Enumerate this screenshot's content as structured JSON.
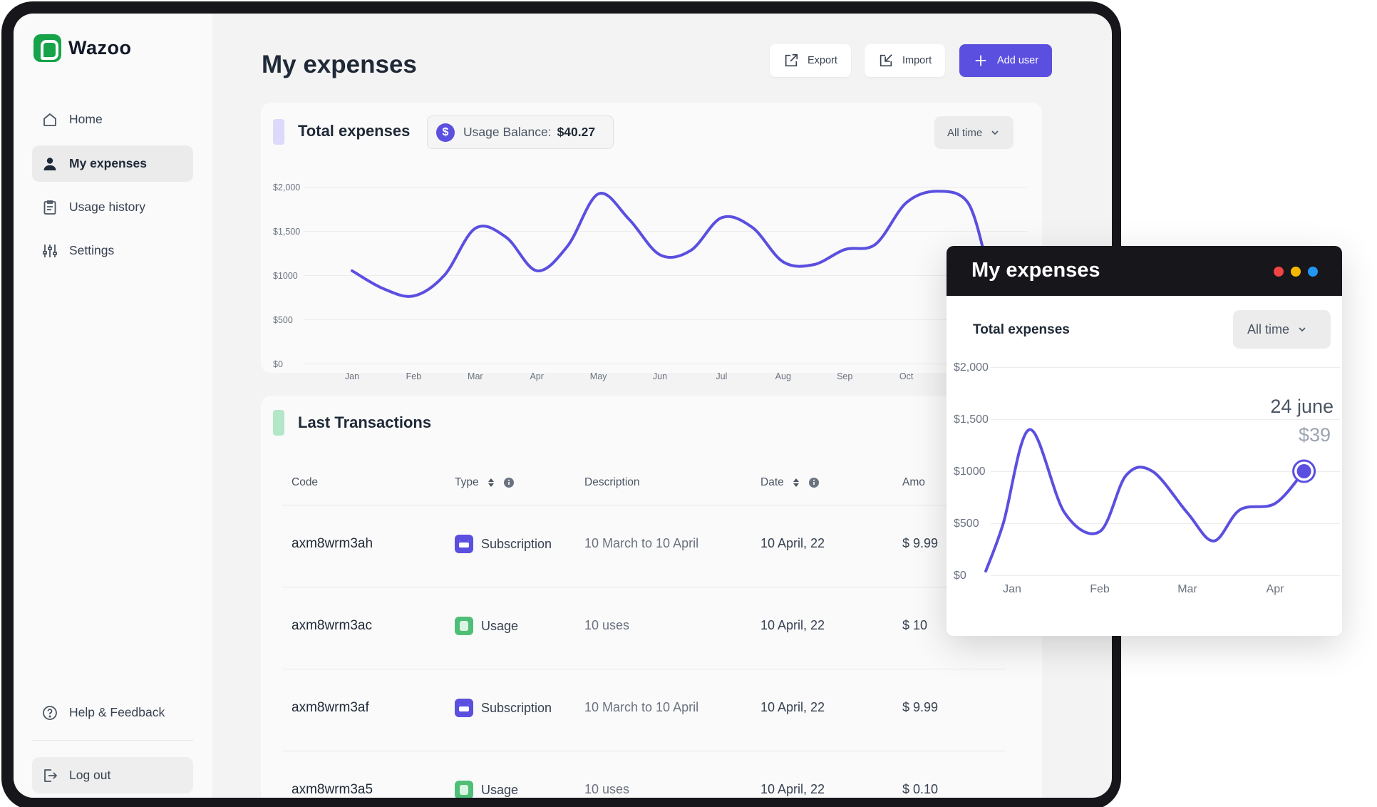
{
  "app": {
    "brand": "Wazoo"
  },
  "sidebar": {
    "items": [
      {
        "label": "Home",
        "icon": "home-icon"
      },
      {
        "label": "My expenses",
        "icon": "user-icon",
        "active": true
      },
      {
        "label": "Usage history",
        "icon": "clipboard-icon"
      },
      {
        "label": "Settings",
        "icon": "sliders-icon"
      }
    ],
    "help": "Help & Feedback",
    "logout": "Log out"
  },
  "header": {
    "title": "My expenses",
    "export_label": "Export",
    "import_label": "Import",
    "add_user_label": "Add user"
  },
  "expenses_card": {
    "title": "Total expenses",
    "balance_label": "Usage Balance:",
    "balance_value": "$40.27",
    "range": "All time"
  },
  "chart_data": [
    {
      "type": "line",
      "title": "Total expenses",
      "y_ticks": [
        "$2,000",
        "$1,500",
        "$1000",
        "$500",
        "$0"
      ],
      "categories": [
        "Jan",
        "Feb",
        "Mar",
        "Apr",
        "May",
        "Jun",
        "Jul",
        "Aug",
        "Sep",
        "Oct"
      ],
      "x": [
        0,
        0.5,
        1,
        1.5,
        2,
        2.5,
        3,
        3.5,
        4,
        4.5,
        5,
        5.5,
        6,
        6.5,
        7,
        7.5,
        8,
        8.5,
        9,
        9.5,
        10,
        10.3
      ],
      "values": [
        1050,
        850,
        765,
        1000,
        1530,
        1430,
        1050,
        1330,
        1920,
        1630,
        1230,
        1280,
        1650,
        1540,
        1150,
        1120,
        1290,
        1350,
        1820,
        1950,
        1820,
        1150
      ],
      "ylim": [
        0,
        2000
      ],
      "grid": true,
      "color": "#5b4fe0"
    },
    {
      "type": "line",
      "title": "Total expenses",
      "y_ticks": [
        "$2,000",
        "$1,500",
        "$1000",
        "$500",
        "$0"
      ],
      "categories": [
        "Jan",
        "Feb",
        "Mar",
        "Apr"
      ],
      "x": [
        -0.3,
        -0.1,
        0.2,
        0.6,
        1.0,
        1.3,
        1.6,
        2.0,
        2.3,
        2.6,
        3.0,
        3.33
      ],
      "values": [
        40,
        500,
        1400,
        600,
        420,
        960,
        1000,
        600,
        330,
        630,
        690,
        1000
      ],
      "ylim": [
        0,
        2000
      ],
      "grid": true,
      "color": "#5b4fe0",
      "annotation": {
        "date": "24 june",
        "value": "$39"
      }
    }
  ],
  "transactions": {
    "title": "Last Transactions",
    "columns": [
      "Code",
      "Type",
      "Description",
      "Date",
      "Amo"
    ],
    "rows": [
      {
        "code": "axm8wrm3ah",
        "type": "Subscription",
        "description": "10 March to 10 April",
        "date": "10 April, 22",
        "amount": "$ 9.99"
      },
      {
        "code": "axm8wrm3ac",
        "type": "Usage",
        "description": "10 uses",
        "date": "10 April, 22",
        "amount": "$ 10"
      },
      {
        "code": "axm8wrm3af",
        "type": "Subscription",
        "description": "10 March to 10 April",
        "date": "10 April, 22",
        "amount": "$ 9.99"
      },
      {
        "code": "axm8wrm3a5",
        "type": "Usage",
        "description": "10 uses",
        "date": "10 April, 22",
        "amount": "$ 0.10"
      }
    ]
  },
  "popup": {
    "title": "My expenses",
    "subtitle": "Total expenses",
    "range": "All time",
    "dot_colors": [
      "#ef4444",
      "#f5b800",
      "#2196f3"
    ]
  }
}
